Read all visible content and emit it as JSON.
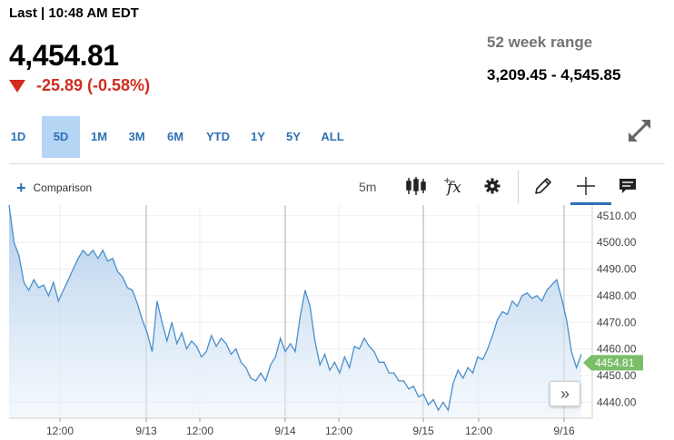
{
  "quote": {
    "last_label": "Last | 10:48 AM EDT",
    "price": "4,454.81",
    "change": "-25.89 (-0.58%)",
    "direction_icon": "down-triangle-icon",
    "range_label": "52 week range",
    "range_value": "3,209.45 - 4,545.85"
  },
  "tabs": [
    {
      "label": "1D",
      "active": false
    },
    {
      "label": "5D",
      "active": true
    },
    {
      "label": "1M",
      "active": false
    },
    {
      "label": "3M",
      "active": false
    },
    {
      "label": "6M",
      "active": false
    },
    {
      "label": "YTD",
      "active": false
    },
    {
      "label": "1Y",
      "active": false
    },
    {
      "label": "5Y",
      "active": false
    },
    {
      "label": "ALL",
      "active": false
    }
  ],
  "toolbar": {
    "comparison_label": "Comparison",
    "interval": "5m",
    "icons": [
      "candlestick-icon",
      "function-fx-icon",
      "gear-icon",
      "pencil-icon",
      "crosshair-icon",
      "comment-icon",
      "expand-icon",
      "chevron-double-right-icon"
    ],
    "fx_label": "fx"
  },
  "colors": {
    "accent": "#2e6fb5",
    "negative": "#d22b1f",
    "line": "#4a8fcc",
    "current_badge": "#7cbd6a"
  },
  "chart_data": {
    "type": "area",
    "xlabels": [
      "12:00",
      "9/13",
      "12:00",
      "9/14",
      "12:00",
      "9/15",
      "12:00",
      "9/16"
    ],
    "y_ticks": [
      "4510.00",
      "4500.00",
      "4490.00",
      "4480.00",
      "4470.00",
      "4460.00",
      "4450.00",
      "4440.00"
    ],
    "ylim": [
      4434,
      4514
    ],
    "current_value": "4454.81",
    "series": [
      {
        "values": [
          4515,
          4500,
          4495,
          4485,
          4482,
          4486,
          4483,
          4484,
          4480,
          4485,
          4478,
          4482,
          4486,
          4490,
          4494,
          4497,
          4495,
          4497,
          4494,
          4497,
          4493,
          4494,
          4489,
          4487,
          4483,
          4482,
          4477,
          4471,
          4466,
          4459,
          4478,
          4470,
          4463,
          4470,
          4462,
          4466,
          4460,
          4463,
          4461,
          4457,
          4459,
          4465,
          4461,
          4464,
          4462,
          4458,
          4460,
          4455,
          4453,
          4449,
          4448,
          4451,
          4448,
          4454,
          4457,
          4464,
          4459,
          4462,
          4459,
          4472,
          4482,
          4476,
          4463,
          4454,
          4458,
          4452,
          4455,
          4451,
          4457,
          4453,
          4461,
          4460,
          4464,
          4461,
          4459,
          4455,
          4455,
          4451,
          4451,
          4448,
          4448,
          4445,
          4446,
          4442,
          4443,
          4439,
          4441,
          4437,
          4440,
          4437,
          4447,
          4452,
          4449,
          4453,
          4451,
          4457,
          4456,
          4460,
          4465,
          4471,
          4474,
          4473,
          4478,
          4476,
          4480,
          4481,
          4479,
          4480,
          4478,
          4482,
          4484,
          4486,
          4479,
          4471,
          4459,
          4453,
          4458
        ]
      }
    ]
  }
}
